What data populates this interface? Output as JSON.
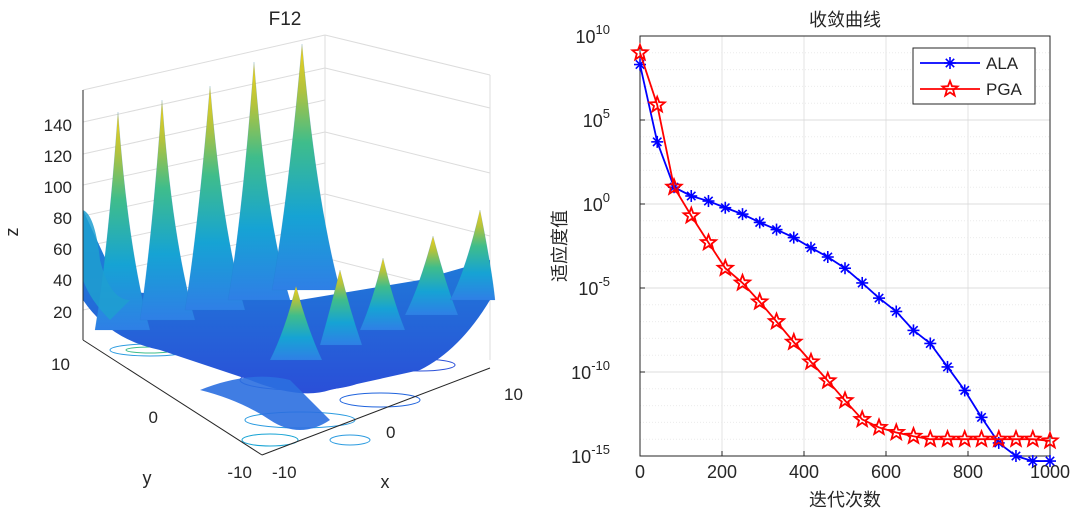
{
  "chart_data": [
    {
      "type": "surface",
      "title": "F12",
      "xlabel": "x",
      "ylabel": "y",
      "zlabel": "z",
      "xlim": [
        -10,
        10
      ],
      "ylim": [
        -10,
        10
      ],
      "x_ticks": [
        "-10",
        "0",
        "10"
      ],
      "y_ticks": [
        "-10",
        "0",
        "10"
      ],
      "z_ticks": [
        "20",
        "40",
        "60",
        "80",
        "100",
        "120",
        "140"
      ],
      "colormap": "parula",
      "contours_on_floor": true,
      "grid": true
    },
    {
      "type": "line",
      "title": "收敛曲线",
      "xlabel": "迭代次数",
      "ylabel": "适应度值",
      "xlim": [
        0,
        1000
      ],
      "ylim": [
        1e-15,
        10000000000.0
      ],
      "yscale": "log",
      "grid": true,
      "legend": "top-right",
      "x_ticks": [
        "0",
        "200",
        "400",
        "600",
        "800",
        "1000"
      ],
      "y_ticks": [
        {
          "base": "10",
          "exp": "10"
        },
        {
          "base": "10",
          "exp": "5"
        },
        {
          "base": "10",
          "exp": "0"
        },
        {
          "base": "10",
          "exp": "-5"
        },
        {
          "base": "10",
          "exp": "-10"
        },
        {
          "base": "10",
          "exp": "-15"
        }
      ],
      "x": [
        0,
        42,
        83,
        125,
        167,
        208,
        250,
        292,
        333,
        375,
        417,
        458,
        500,
        542,
        583,
        625,
        667,
        708,
        750,
        792,
        833,
        875,
        917,
        958,
        1000
      ],
      "series": [
        {
          "name": "ALA",
          "color": "#0000ff",
          "marker": "asterisk",
          "values": [
            200000000.0,
            5000.0,
            10.0,
            3,
            1.5,
            0.6,
            0.25,
            0.08,
            0.03,
            0.01,
            0.0025,
            0.0007,
            0.00015,
            2e-05,
            2.5e-06,
            4e-07,
            3e-08,
            5e-09,
            2e-10,
            8e-12,
            2e-13,
            6e-15,
            1e-15,
            5e-16,
            5e-16
          ]
        },
        {
          "name": "PGA",
          "color": "#ff0000",
          "marker": "pentagram",
          "values": [
            1000000000.0,
            800000.0,
            10.0,
            0.2,
            0.005,
            0.00015,
            2e-05,
            1.5e-06,
            1e-07,
            6e-09,
            4e-10,
            3e-11,
            2e-12,
            1.5e-13,
            5e-14,
            2.5e-14,
            1.5e-14,
            1e-14,
            1e-14,
            1e-14,
            1e-14,
            1e-14,
            1e-14,
            1e-14,
            8e-15
          ]
        }
      ]
    }
  ]
}
